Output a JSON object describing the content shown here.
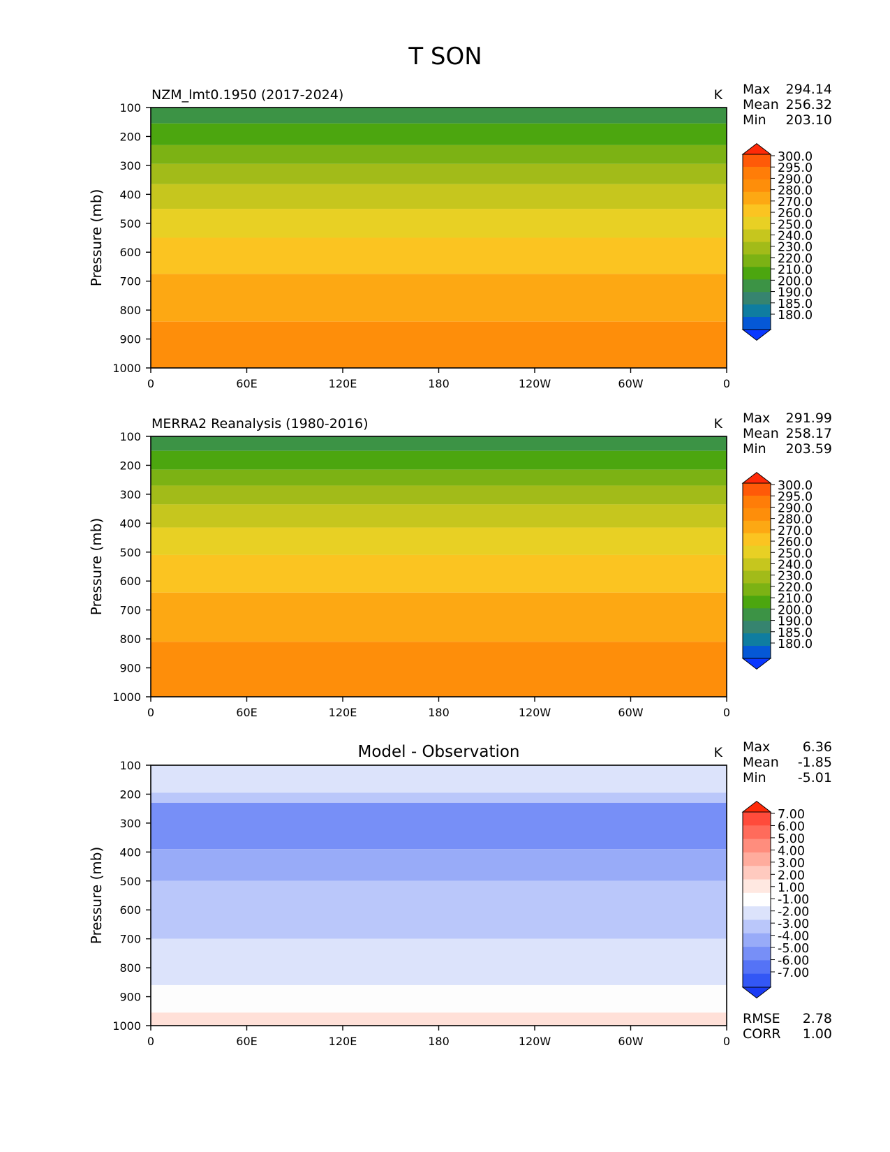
{
  "figure": {
    "title": "T SON"
  },
  "chart_data": [
    {
      "type": "heatmap",
      "title": "NZM_lmt0.1950 (2017-2024)",
      "units": "K",
      "ylabel": "Pressure (mb)",
      "xlabel": "",
      "x_ticklabels": [
        "0",
        "60E",
        "120E",
        "180",
        "120W",
        "60W",
        "0"
      ],
      "x_range": [
        0,
        360
      ],
      "y_ticklabels": [
        "100",
        "200",
        "300",
        "400",
        "500",
        "600",
        "700",
        "800",
        "900",
        "1000"
      ],
      "y_range": [
        100,
        1000
      ],
      "stats": [
        {
          "label": "Max",
          "value": "294.14"
        },
        {
          "label": "Mean",
          "value": "256.32"
        },
        {
          "label": "Min",
          "value": "203.10"
        }
      ],
      "colorbar": {
        "labels": [
          "300.0",
          "295.0",
          "290.0",
          "280.0",
          "270.0",
          "260.0",
          "250.0",
          "240.0",
          "230.0",
          "220.0",
          "210.0",
          "200.0",
          "190.0",
          "185.0",
          "180.0"
        ],
        "colors": [
          "#ff2a08",
          "#ff5a08",
          "#ff7d08",
          "#fe8e0a",
          "#fda813",
          "#fbc421",
          "#e8d024",
          "#c6c61e",
          "#a2bb19",
          "#7cb214",
          "#4ca60f",
          "#3c9345",
          "#36846f",
          "#0f7da0",
          "#0558d6",
          "#0a38ff"
        ]
      },
      "bands": [
        {
          "from": 100,
          "to": 155,
          "color": "#3c9345"
        },
        {
          "from": 155,
          "to": 230,
          "color": "#4ca60f"
        },
        {
          "from": 230,
          "to": 295,
          "color": "#7cb214"
        },
        {
          "from": 295,
          "to": 365,
          "color": "#a2bb19"
        },
        {
          "from": 365,
          "to": 450,
          "color": "#c6c61e"
        },
        {
          "from": 450,
          "to": 550,
          "color": "#e8d024"
        },
        {
          "from": 550,
          "to": 675,
          "color": "#fbc421"
        },
        {
          "from": 675,
          "to": 840,
          "color": "#fda813"
        },
        {
          "from": 840,
          "to": 1000,
          "color": "#fe8e0a"
        }
      ]
    },
    {
      "type": "heatmap",
      "title": "MERRA2 Reanalysis (1980-2016)",
      "units": "K",
      "ylabel": "Pressure (mb)",
      "xlabel": "",
      "x_ticklabels": [
        "0",
        "60E",
        "120E",
        "180",
        "120W",
        "60W",
        "0"
      ],
      "x_range": [
        0,
        360
      ],
      "y_ticklabels": [
        "100",
        "200",
        "300",
        "400",
        "500",
        "600",
        "700",
        "800",
        "900",
        "1000"
      ],
      "y_range": [
        100,
        1000
      ],
      "stats": [
        {
          "label": "Max",
          "value": "291.99"
        },
        {
          "label": "Mean",
          "value": "258.17"
        },
        {
          "label": "Min",
          "value": "203.59"
        }
      ],
      "colorbar": {
        "labels": [
          "300.0",
          "295.0",
          "290.0",
          "280.0",
          "270.0",
          "260.0",
          "250.0",
          "240.0",
          "230.0",
          "220.0",
          "210.0",
          "200.0",
          "190.0",
          "185.0",
          "180.0"
        ],
        "colors": [
          "#ff2a08",
          "#ff5a08",
          "#ff7d08",
          "#fe8e0a",
          "#fda813",
          "#fbc421",
          "#e8d024",
          "#c6c61e",
          "#a2bb19",
          "#7cb214",
          "#4ca60f",
          "#3c9345",
          "#36846f",
          "#0f7da0",
          "#0558d6",
          "#0a38ff"
        ]
      },
      "bands": [
        {
          "from": 100,
          "to": 150,
          "color": "#3c9345"
        },
        {
          "from": 150,
          "to": 215,
          "color": "#4ca60f"
        },
        {
          "from": 215,
          "to": 270,
          "color": "#7cb214"
        },
        {
          "from": 270,
          "to": 335,
          "color": "#a2bb19"
        },
        {
          "from": 335,
          "to": 415,
          "color": "#c6c61e"
        },
        {
          "from": 415,
          "to": 510,
          "color": "#e8d024"
        },
        {
          "from": 510,
          "to": 640,
          "color": "#fbc421"
        },
        {
          "from": 640,
          "to": 810,
          "color": "#fda813"
        },
        {
          "from": 810,
          "to": 1000,
          "color": "#fe8e0a"
        }
      ]
    },
    {
      "type": "heatmap",
      "title": "Model - Observation",
      "units": "K",
      "ylabel": "Pressure (mb)",
      "xlabel": "",
      "x_ticklabels": [
        "0",
        "60E",
        "120E",
        "180",
        "120W",
        "60W",
        "0"
      ],
      "x_range": [
        0,
        360
      ],
      "y_ticklabels": [
        "100",
        "200",
        "300",
        "400",
        "500",
        "600",
        "700",
        "800",
        "900",
        "1000"
      ],
      "y_range": [
        100,
        1000
      ],
      "stats": [
        {
          "label": "Max",
          "value": "6.36"
        },
        {
          "label": "Mean",
          "value": "-1.85"
        },
        {
          "label": "Min",
          "value": "-5.01"
        }
      ],
      "metrics": [
        {
          "label": "RMSE",
          "value": "2.78"
        },
        {
          "label": "CORR",
          "value": "1.00"
        }
      ],
      "colorbar": {
        "labels": [
          "7.00",
          "6.00",
          "5.00",
          "4.00",
          "3.00",
          "2.00",
          "1.00",
          "-1.00",
          "-2.00",
          "-3.00",
          "-4.00",
          "-5.00",
          "-6.00",
          "-7.00"
        ],
        "colors": [
          "#ff2a08",
          "#ff4b3b",
          "#ff6b5b",
          "#ff8d7d",
          "#ffac9d",
          "#ffcabf",
          "#ffe8e1",
          "#ffffff",
          "#dce3fb",
          "#bac7fa",
          "#98abf8",
          "#778ff7",
          "#5573f6",
          "#3357f5",
          "#1a3bf4"
        ]
      },
      "bands": [
        {
          "from": 100,
          "to": 195,
          "color": "#dce3fb"
        },
        {
          "from": 195,
          "to": 230,
          "color": "#bac7fa"
        },
        {
          "from": 230,
          "to": 390,
          "color": "#778ff7"
        },
        {
          "from": 390,
          "to": 500,
          "color": "#98abf8"
        },
        {
          "from": 500,
          "to": 700,
          "color": "#bac7fa"
        },
        {
          "from": 700,
          "to": 860,
          "color": "#dce3fb"
        },
        {
          "from": 860,
          "to": 955,
          "color": "#fdfdfd"
        },
        {
          "from": 955,
          "to": 1000,
          "color": "#ffe0d8"
        }
      ]
    }
  ]
}
